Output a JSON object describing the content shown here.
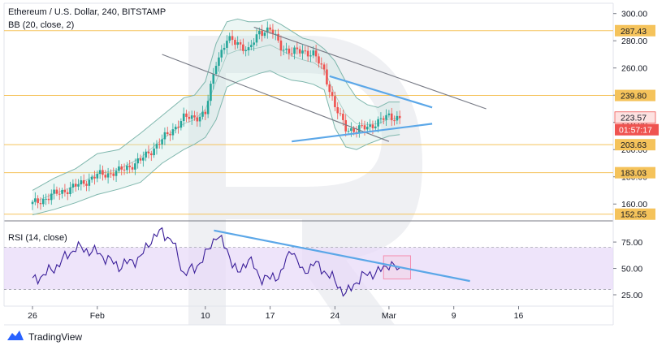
{
  "chart_data": {
    "type": "candlestick",
    "title": "Ethereum / U.S. Dollar, 240, BITSTAMP",
    "indicator_label": "BB (20, close, 2)",
    "price_axis": {
      "ylim": [
        150,
        304
      ],
      "ticks": [
        "300.00",
        "280.00",
        "260.00",
        "240.00",
        "220.00",
        "200.00",
        "180.00",
        "160.00"
      ],
      "tick_values": [
        300,
        280,
        260,
        240,
        220,
        200,
        180,
        160
      ]
    },
    "levels": [
      {
        "label": "287.43",
        "value": 287.43
      },
      {
        "label": "239.80",
        "value": 239.8
      },
      {
        "label": "203.63",
        "value": 203.63
      },
      {
        "label": "183.03",
        "value": 183.03
      },
      {
        "label": "152.55",
        "value": 152.55
      }
    ],
    "current_price": {
      "label": "223.57",
      "value": 223.57
    },
    "countdown": "01:57:17",
    "x_axis": {
      "ticks": [
        "26",
        "Feb",
        "10",
        "17",
        "24",
        "Mar",
        "9",
        "16"
      ],
      "tick_index": [
        0,
        6,
        16,
        22,
        28,
        33,
        39,
        45
      ]
    },
    "price_series": {
      "name": "ETHUSD close",
      "index": [
        0,
        2,
        4,
        6,
        8,
        10,
        12,
        14,
        15,
        16,
        17,
        18,
        19,
        20,
        21,
        22,
        23,
        24,
        25,
        26,
        27,
        28,
        29,
        30,
        31,
        32,
        33,
        34
      ],
      "values": [
        160,
        167,
        173,
        181,
        184,
        192,
        207,
        223,
        224,
        226,
        265,
        280,
        279,
        272,
        287,
        288,
        276,
        271,
        273,
        270,
        258,
        231,
        216,
        214,
        217,
        220,
        225,
        223
      ]
    },
    "bollinger": {
      "upper": [
        170,
        179,
        186,
        197,
        200,
        212,
        225,
        238,
        240,
        250,
        278,
        294,
        296,
        294,
        294,
        296,
        292,
        287,
        282,
        280,
        274,
        265,
        250,
        238,
        233,
        231,
        235,
        235
      ],
      "lower": [
        152,
        156,
        161,
        167,
        171,
        176,
        190,
        200,
        204,
        209,
        222,
        246,
        250,
        253,
        256,
        258,
        254,
        251,
        250,
        248,
        244,
        216,
        202,
        200,
        204,
        207,
        210,
        211
      ]
    },
    "trend_lines": [
      {
        "name": "channel-upper",
        "from": [
          20.5,
          290
        ],
        "to": [
          42,
          230
        ],
        "color": "#787b86"
      },
      {
        "name": "channel-lower",
        "from": [
          12,
          270
        ],
        "to": [
          33,
          206
        ],
        "color": "#787b86"
      },
      {
        "name": "triangle-upper",
        "from": [
          27.5,
          254
        ],
        "to": [
          37,
          231
        ],
        "color": "#5ba7e8"
      },
      {
        "name": "triangle-lower",
        "from": [
          24,
          206
        ],
        "to": [
          37,
          219
        ],
        "color": "#5ba7e8"
      }
    ],
    "rsi": {
      "label": "RSI (14, close)",
      "ylim": [
        15,
        92
      ],
      "ticks": [
        "75.00",
        "50.00",
        "25.00"
      ],
      "tick_values": [
        75,
        50,
        25
      ],
      "band": [
        30,
        70
      ],
      "index": [
        0,
        2,
        4,
        6,
        8,
        10,
        11,
        12,
        13,
        14,
        15,
        16,
        17,
        18,
        19,
        20,
        21,
        22,
        23,
        24,
        25,
        26,
        27,
        28,
        29,
        30,
        31,
        32,
        33,
        34
      ],
      "values": [
        38,
        50,
        70,
        65,
        52,
        60,
        78,
        85,
        75,
        45,
        50,
        62,
        82,
        68,
        44,
        60,
        42,
        40,
        45,
        70,
        45,
        55,
        48,
        38,
        25,
        38,
        45,
        46,
        55,
        47
      ],
      "trend_line": {
        "from": [
          16.8,
          86
        ],
        "to": [
          40.5,
          38
        ]
      },
      "highlight": {
        "x0": 32.5,
        "x1": 35,
        "y0": 40,
        "y1": 62
      }
    }
  },
  "branding": {
    "name": "TradingView"
  },
  "colors": {
    "up": "#26a69a",
    "down": "#ef5350",
    "bb_line": "#7fb7ad",
    "bb_fill": "#c8e6e0",
    "level": "#f5c35b",
    "rsi_line": "#3a1e99",
    "rsi_band": "#e8dbf8",
    "trend_blue": "#5ba7e8",
    "trend_gray": "#787b86",
    "countdown_bg": "#ef5350"
  }
}
